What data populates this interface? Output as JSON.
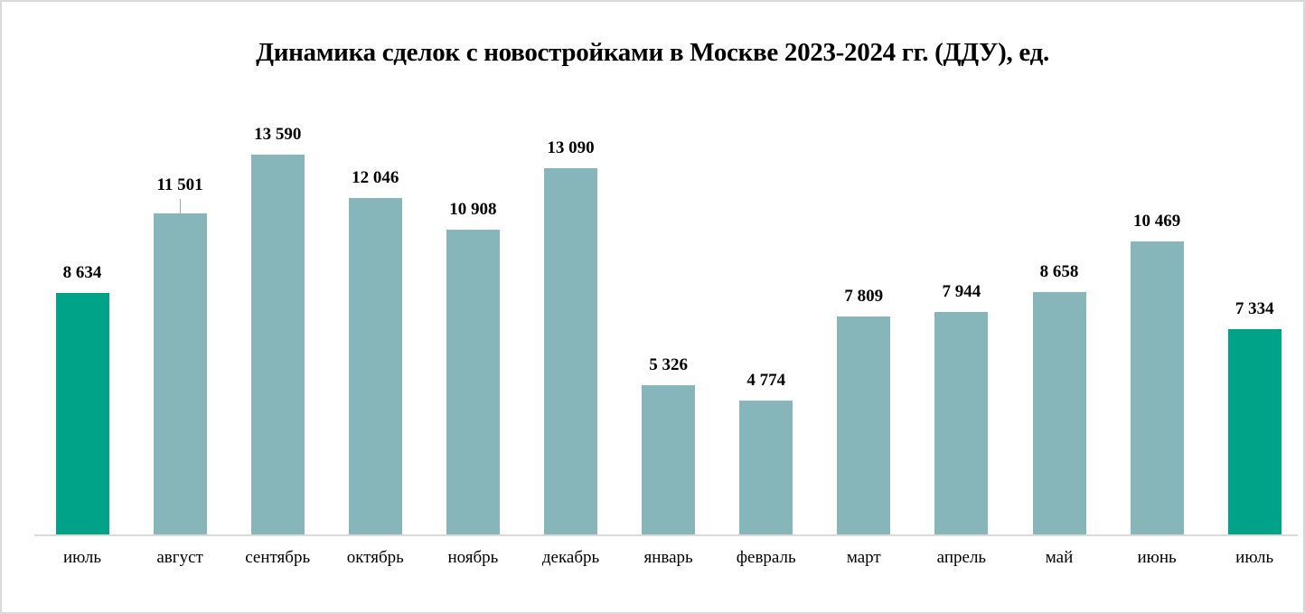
{
  "chart_data": {
    "type": "bar",
    "title": "Динамика сделок с новостройками в Москве 2023-2024 гг. (ДДУ), ед.",
    "xlabel": "",
    "ylabel": "",
    "ylim": [
      0,
      13590
    ],
    "grid": false,
    "legend": null,
    "categories": [
      "июль",
      "август",
      "сентябрь",
      "октябрь",
      "ноябрь",
      "декабрь",
      "январь",
      "февраль",
      "март",
      "апрель",
      "май",
      "июнь",
      "июль"
    ],
    "values": [
      8634,
      11501,
      13590,
      12046,
      10908,
      13090,
      5326,
      4774,
      7809,
      7944,
      8658,
      10469,
      7334
    ],
    "value_labels": [
      "8 634",
      "11 501",
      "13 590",
      "12 046",
      "10 908",
      "13 090",
      "5 326",
      "4 774",
      "7 809",
      "7 944",
      "8 658",
      "10 469",
      "7 334"
    ],
    "highlighted": [
      true,
      false,
      false,
      false,
      false,
      false,
      false,
      false,
      false,
      false,
      false,
      false,
      true
    ],
    "colors": {
      "default_bar": "#86b5ba",
      "highlight_bar": "#00a387",
      "axis": "#d9d9d9",
      "text": "#000000"
    }
  }
}
